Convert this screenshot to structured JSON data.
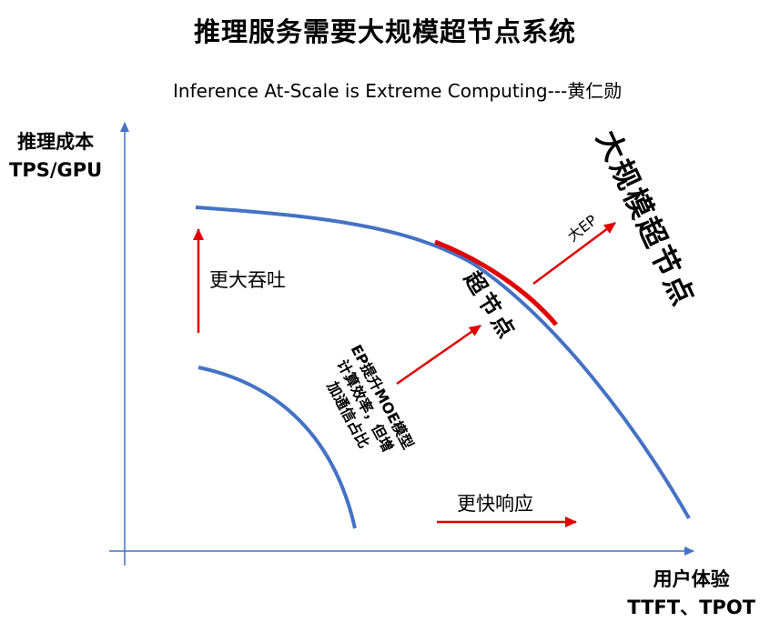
{
  "title": "推理服务需要大规模超节点系统",
  "subtitle": "Inference At-Scale is Extreme Computing---黄仁勋",
  "y_axis": {
    "line1": "推理成本",
    "line2": "TPS/GPU"
  },
  "x_axis": {
    "line1": "用户体验",
    "line2": "TTFT、TPOT"
  },
  "annotations": {
    "throughput": "更大吞吐",
    "response": "更快响应",
    "ep_line1": "EP提升MOE模型",
    "ep_line2": "计算效率，但增",
    "ep_line3": "加通信占比",
    "supernode_on_curve": "超节点",
    "big_ep": "大EP",
    "large_supernode": "大规模超节点"
  },
  "colors": {
    "curve": "#4472C4",
    "arrow": "#E00000",
    "axis": "#4472C4",
    "highlight": "#E00000"
  }
}
